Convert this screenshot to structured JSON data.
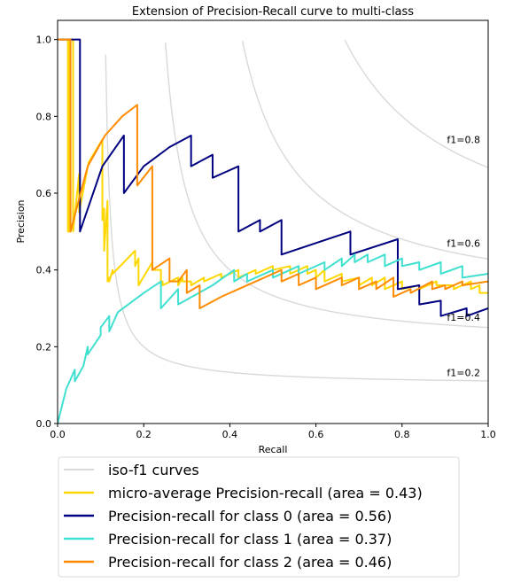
{
  "chart_data": {
    "type": "line",
    "title": "Extension of Precision-Recall curve to multi-class",
    "xlabel": "Recall",
    "ylabel": "Precision",
    "xlim": [
      0.0,
      1.0
    ],
    "ylim": [
      0.0,
      1.05
    ],
    "xticks": [
      "0.0",
      "0.2",
      "0.4",
      "0.6",
      "0.8",
      "1.0"
    ],
    "yticks": [
      "0.0",
      "0.2",
      "0.4",
      "0.6",
      "0.8",
      "1.0"
    ],
    "xtick_values": [
      0.0,
      0.2,
      0.4,
      0.6,
      0.8,
      1.0
    ],
    "ytick_values": [
      0.0,
      0.2,
      0.4,
      0.6,
      0.8,
      1.0
    ],
    "grid": false,
    "legend_position": "below",
    "iso_f1": {
      "legend": "iso-f1 curves",
      "color": "#d9d9d9",
      "values": [
        0.2,
        0.4,
        0.6,
        0.8
      ],
      "labels": [
        "f1=0.2",
        "f1=0.4",
        "f1=0.6",
        "f1=0.8"
      ]
    },
    "series": [
      {
        "name": "micro-average Precision-recall (area = 0.43)",
        "color": "#ffd700",
        "x": [
          0.0,
          0.024,
          0.024,
          0.027,
          0.027,
          0.036,
          0.036,
          0.05,
          0.05,
          0.072,
          0.072,
          0.104,
          0.104,
          0.108,
          0.108,
          0.116,
          0.116,
          0.12,
          0.12,
          0.128,
          0.128,
          0.18,
          0.18,
          0.188,
          0.188,
          0.22,
          0.22,
          0.24,
          0.24,
          0.244,
          0.244,
          0.28,
          0.28,
          0.29,
          0.29,
          0.31,
          0.31,
          0.34,
          0.34,
          0.38,
          0.38,
          0.42,
          0.42,
          0.46,
          0.46,
          0.5,
          0.5,
          0.54,
          0.54,
          0.58,
          0.58,
          0.6,
          0.6,
          0.62,
          0.62,
          0.66,
          0.66,
          0.7,
          0.7,
          0.73,
          0.73,
          0.76,
          0.76,
          0.8,
          0.8,
          0.84,
          0.84,
          0.88,
          0.88,
          0.92,
          0.92,
          0.96,
          0.96,
          0.98,
          0.98,
          1.0
        ],
        "y": [
          1.0,
          1.0,
          0.5,
          0.5,
          1.0,
          1.0,
          0.5,
          0.65,
          0.55,
          0.68,
          0.68,
          0.74,
          0.53,
          0.56,
          0.45,
          0.58,
          0.37,
          0.38,
          0.37,
          0.4,
          0.39,
          0.45,
          0.41,
          0.43,
          0.36,
          0.42,
          0.4,
          0.4,
          0.37,
          0.37,
          0.36,
          0.38,
          0.36,
          0.38,
          0.37,
          0.37,
          0.36,
          0.38,
          0.37,
          0.39,
          0.38,
          0.4,
          0.38,
          0.4,
          0.39,
          0.41,
          0.4,
          0.41,
          0.39,
          0.41,
          0.39,
          0.4,
          0.38,
          0.4,
          0.37,
          0.39,
          0.37,
          0.38,
          0.36,
          0.38,
          0.36,
          0.38,
          0.35,
          0.37,
          0.35,
          0.36,
          0.35,
          0.37,
          0.36,
          0.36,
          0.35,
          0.37,
          0.35,
          0.36,
          0.34,
          0.34
        ]
      },
      {
        "name": "Precision-recall for class 0 (area = 0.56)",
        "color": "#000080",
        "x": [
          0.0,
          0.052,
          0.052,
          0.104,
          0.154,
          0.154,
          0.2,
          0.26,
          0.31,
          0.31,
          0.36,
          0.36,
          0.42,
          0.42,
          0.47,
          0.47,
          0.52,
          0.52,
          0.68,
          0.68,
          0.79,
          0.79,
          0.84,
          0.84,
          0.89,
          0.89,
          0.95,
          0.95,
          1.0
        ],
        "y": [
          1.0,
          1.0,
          0.5,
          0.67,
          0.75,
          0.6,
          0.67,
          0.72,
          0.75,
          0.67,
          0.7,
          0.64,
          0.67,
          0.5,
          0.53,
          0.5,
          0.53,
          0.44,
          0.5,
          0.44,
          0.48,
          0.35,
          0.36,
          0.31,
          0.32,
          0.28,
          0.3,
          0.28,
          0.3
        ]
      },
      {
        "name": "Precision-recall for class 1 (area = 0.37)",
        "color": "#40e0d0",
        "x": [
          0.0,
          0.02,
          0.04,
          0.04,
          0.06,
          0.07,
          0.07,
          0.1,
          0.1,
          0.12,
          0.12,
          0.14,
          0.2,
          0.24,
          0.24,
          0.28,
          0.28,
          0.36,
          0.41,
          0.41,
          0.44,
          0.44,
          0.5,
          0.5,
          0.56,
          0.56,
          0.62,
          0.62,
          0.66,
          0.66,
          0.69,
          0.69,
          0.72,
          0.72,
          0.76,
          0.76,
          0.8,
          0.8,
          0.84,
          0.84,
          0.89,
          0.89,
          0.94,
          0.94,
          1.0
        ],
        "y": [
          0.0,
          0.09,
          0.14,
          0.11,
          0.15,
          0.2,
          0.18,
          0.23,
          0.25,
          0.28,
          0.24,
          0.29,
          0.34,
          0.37,
          0.3,
          0.35,
          0.31,
          0.36,
          0.4,
          0.37,
          0.39,
          0.37,
          0.4,
          0.38,
          0.41,
          0.39,
          0.42,
          0.4,
          0.43,
          0.41,
          0.44,
          0.42,
          0.44,
          0.42,
          0.44,
          0.41,
          0.43,
          0.41,
          0.42,
          0.4,
          0.42,
          0.39,
          0.41,
          0.38,
          0.39
        ]
      },
      {
        "name": "Precision-recall for class 2 (area = 0.46)",
        "color": "#ff8c00",
        "x": [
          0.0,
          0.03,
          0.03,
          0.07,
          0.11,
          0.15,
          0.185,
          0.185,
          0.22,
          0.22,
          0.26,
          0.26,
          0.28,
          0.3,
          0.3,
          0.33,
          0.33,
          0.38,
          0.42,
          0.46,
          0.5,
          0.52,
          0.52,
          0.56,
          0.56,
          0.6,
          0.6,
          0.66,
          0.66,
          0.7,
          0.7,
          0.74,
          0.74,
          0.78,
          0.78,
          0.82,
          0.82,
          0.87,
          0.87,
          0.9,
          0.9,
          0.94,
          0.94,
          1.0
        ],
        "y": [
          1.0,
          1.0,
          0.5,
          0.67,
          0.75,
          0.8,
          0.83,
          0.62,
          0.67,
          0.4,
          0.43,
          0.37,
          0.37,
          0.4,
          0.34,
          0.36,
          0.3,
          0.33,
          0.35,
          0.37,
          0.39,
          0.4,
          0.37,
          0.39,
          0.36,
          0.38,
          0.35,
          0.38,
          0.36,
          0.38,
          0.35,
          0.37,
          0.35,
          0.38,
          0.33,
          0.35,
          0.34,
          0.37,
          0.35,
          0.36,
          0.35,
          0.37,
          0.36,
          0.37
        ]
      }
    ]
  }
}
